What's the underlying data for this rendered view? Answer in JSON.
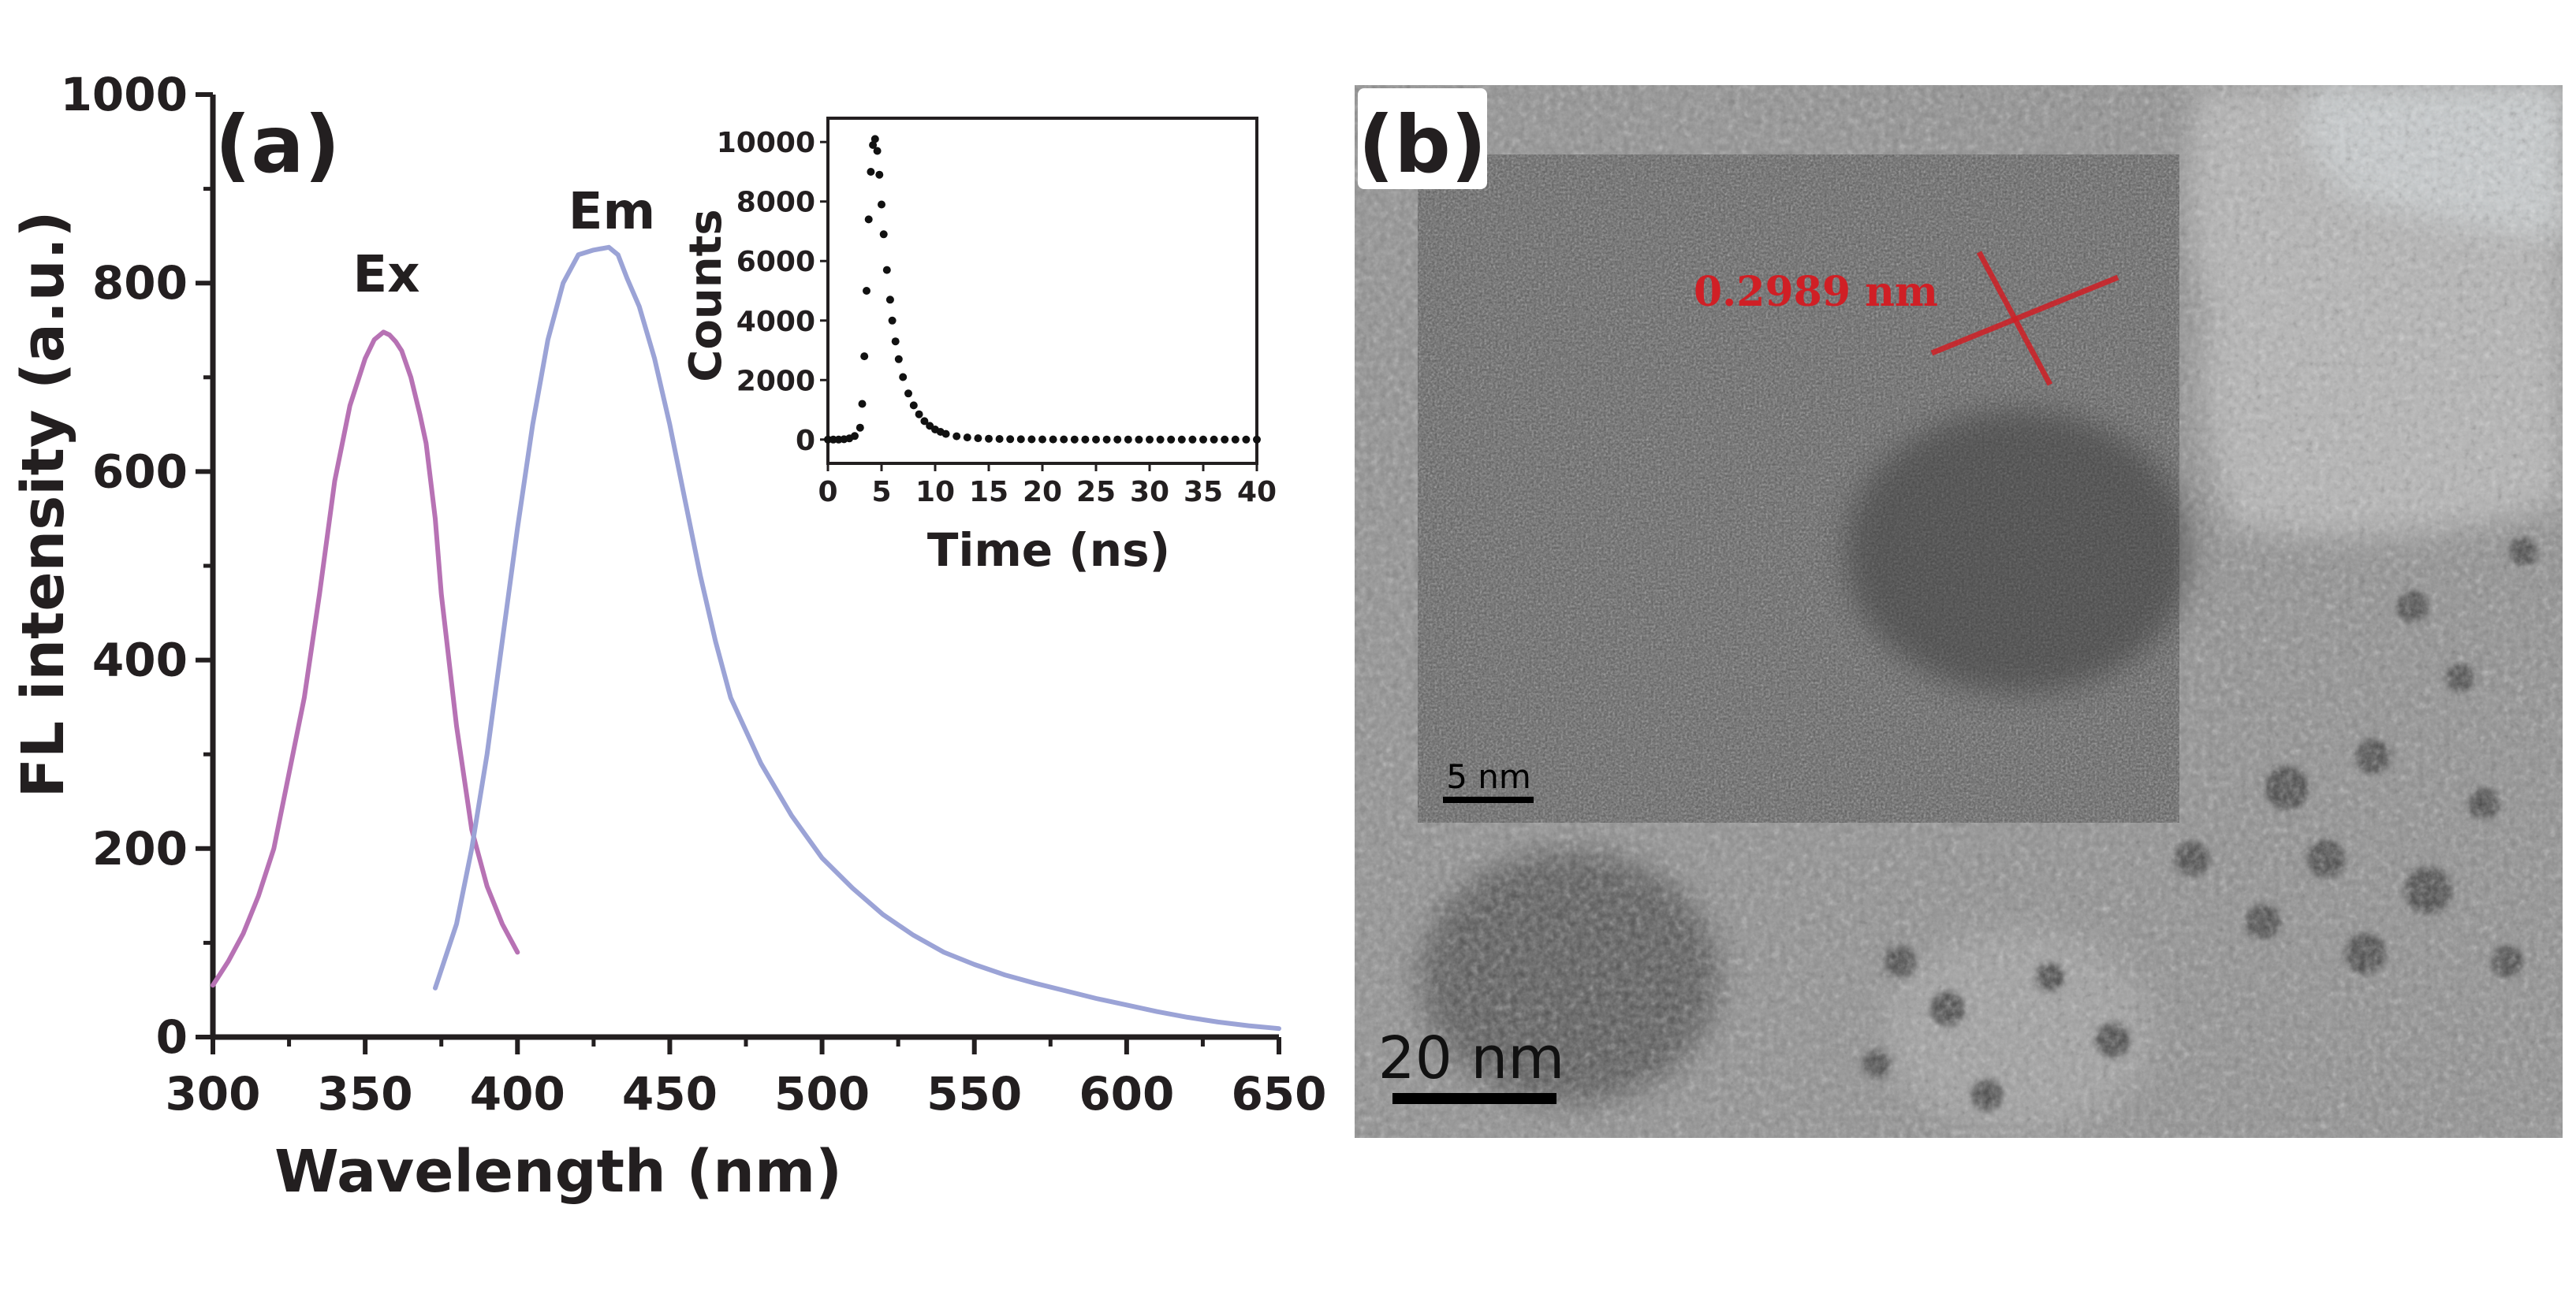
{
  "panels": {
    "a_label": "(a)",
    "b_label": "(b)"
  },
  "chart_data": [
    {
      "type": "line",
      "xlabel": "Wavelength (nm)",
      "ylabel": "FL intensity (a.u.)",
      "xlim": [
        300,
        650
      ],
      "ylim": [
        0,
        1000
      ],
      "x_ticks": [
        "300",
        "350",
        "400",
        "450",
        "500",
        "550",
        "600",
        "650"
      ],
      "y_ticks": [
        "0",
        "200",
        "400",
        "600",
        "800",
        "1000"
      ],
      "grid": false,
      "annotations": [
        "Ex",
        "Em"
      ],
      "colors": {
        "Ex": "#b772b4",
        "Em": "#9ba3d6"
      },
      "series": [
        {
          "name": "Ex",
          "x": [
            300,
            305,
            310,
            315,
            320,
            325,
            330,
            335,
            340,
            345,
            350,
            353,
            356,
            358,
            360,
            362,
            365,
            368,
            370,
            373,
            375,
            380,
            385,
            390,
            395,
            400
          ],
          "y": [
            55,
            80,
            110,
            150,
            200,
            280,
            360,
            470,
            590,
            670,
            720,
            740,
            748,
            745,
            738,
            728,
            700,
            660,
            630,
            550,
            470,
            330,
            220,
            160,
            120,
            90
          ]
        },
        {
          "name": "Em",
          "x": [
            373,
            380,
            385,
            390,
            395,
            400,
            405,
            410,
            415,
            420,
            425,
            430,
            433,
            436,
            440,
            445,
            450,
            455,
            460,
            465,
            470,
            480,
            490,
            500,
            510,
            520,
            530,
            540,
            550,
            560,
            570,
            580,
            590,
            600,
            610,
            620,
            630,
            640,
            650
          ],
          "y": [
            52,
            120,
            200,
            300,
            420,
            540,
            650,
            740,
            800,
            830,
            835,
            838,
            830,
            805,
            775,
            720,
            650,
            570,
            490,
            420,
            360,
            290,
            235,
            190,
            158,
            130,
            108,
            90,
            77,
            66,
            57,
            49,
            41,
            34,
            27,
            21,
            16,
            12,
            9
          ]
        }
      ]
    },
    {
      "type": "scatter",
      "xlabel": "Time (ns)",
      "ylabel": "Counts",
      "xlim": [
        0,
        40
      ],
      "ylim": [
        -800,
        10800
      ],
      "x_ticks": [
        "0",
        "5",
        "10",
        "15",
        "20",
        "25",
        "30",
        "35",
        "40"
      ],
      "y_ticks": [
        "0",
        "2000",
        "4000",
        "6000",
        "8000",
        "10000"
      ],
      "grid": false,
      "colors": {
        "markers": "#111111"
      },
      "series": [
        {
          "x": [
            0,
            0.5,
            1,
            1.5,
            2,
            2.5,
            3,
            3.2,
            3.4,
            3.6,
            3.8,
            4,
            4.2,
            4.4,
            4.6,
            4.8,
            5,
            5.2,
            5.5,
            5.8,
            6,
            6.3,
            6.6,
            7,
            7.5,
            8,
            8.5,
            9,
            9.5,
            10,
            10.5,
            11,
            12,
            13,
            14,
            15,
            16,
            17,
            18,
            19,
            20,
            21,
            22,
            23,
            24,
            25,
            26,
            27,
            28,
            29,
            30,
            31,
            32,
            33,
            34,
            35,
            36,
            37,
            38,
            39,
            40
          ],
          "y": [
            0,
            0,
            0,
            10,
            40,
            120,
            400,
            1200,
            2800,
            5000,
            7400,
            9000,
            9900,
            10100,
            9700,
            8900,
            7900,
            6900,
            5700,
            4700,
            4000,
            3300,
            2700,
            2100,
            1550,
            1150,
            850,
            620,
            460,
            340,
            260,
            190,
            110,
            70,
            45,
            30,
            20,
            14,
            10,
            8,
            6,
            5,
            4,
            3,
            3,
            2,
            2,
            2,
            2,
            1,
            1,
            1,
            1,
            1,
            1,
            1,
            1,
            1,
            1,
            1,
            1
          ]
        }
      ]
    }
  ],
  "tem": {
    "scale_main": "20  nm",
    "scale_inset": "5  nm",
    "lattice_label": "0.2989 nm"
  }
}
